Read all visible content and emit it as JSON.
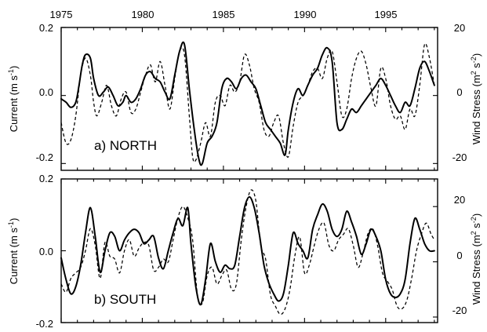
{
  "chart_data": [
    {
      "type": "line",
      "panel_label": "a) NORTH",
      "x_tick_labels": [
        "1975",
        "1980",
        "1985",
        "1990",
        "1995"
      ],
      "xlim": [
        1975,
        1998.2
      ],
      "left_axis": {
        "label_main": "Current (m s",
        "label_exp": "-1",
        "label_close": ")",
        "ylim": [
          -0.22,
          0.2
        ],
        "ticks": [
          0.2,
          0.0,
          -0.2
        ],
        "tick_labels": [
          "0.2",
          "0.0",
          "-0.2"
        ]
      },
      "right_axis": {
        "label_main": "Wind Stress (m",
        "label_exp1": "2",
        "label_mid": " s",
        "label_exp2": "-2",
        "label_close": ")",
        "ylim": [
          -22,
          20
        ],
        "ticks": [
          20,
          0,
          -20
        ],
        "tick_labels": [
          "20",
          "0",
          "-20"
        ]
      },
      "series": [
        {
          "style": "solid",
          "axis": "left",
          "x": [
            1975.0,
            1975.3,
            1975.6,
            1975.9,
            1976.1,
            1976.3,
            1976.5,
            1976.8,
            1977.0,
            1977.3,
            1977.6,
            1977.9,
            1978.2,
            1978.5,
            1978.8,
            1979.0,
            1979.3,
            1979.6,
            1979.9,
            1980.2,
            1980.5,
            1980.8,
            1981.1,
            1981.4,
            1981.7,
            1982.0,
            1982.3,
            1982.6,
            1982.9,
            1983.2,
            1983.5,
            1983.7,
            1984.0,
            1984.3,
            1984.6,
            1984.9,
            1985.2,
            1985.5,
            1985.8,
            1986.1,
            1986.4,
            1986.7,
            1987.0,
            1987.3,
            1987.6,
            1987.9,
            1988.2,
            1988.5,
            1988.8,
            1989.0,
            1989.3,
            1989.6,
            1989.9,
            1990.2,
            1990.5,
            1990.8,
            1991.1,
            1991.4,
            1991.7,
            1992.0,
            1992.3,
            1992.6,
            1992.9,
            1993.2,
            1993.5,
            1993.8,
            1994.1,
            1994.4,
            1994.7,
            1995.0,
            1995.3,
            1995.6,
            1995.9,
            1996.2,
            1996.5,
            1996.8,
            1997.1,
            1997.4,
            1997.7,
            1998.0
          ],
          "y": [
            -0.01,
            -0.02,
            -0.035,
            -0.02,
            0.03,
            0.09,
            0.12,
            0.11,
            0.05,
            0.0,
            0.01,
            0.025,
            0.0,
            -0.03,
            -0.02,
            0.0,
            -0.02,
            -0.01,
            0.02,
            0.06,
            0.07,
            0.05,
            0.04,
            0.01,
            -0.01,
            0.06,
            0.13,
            0.15,
            0.02,
            -0.1,
            -0.19,
            -0.2,
            -0.14,
            -0.12,
            -0.08,
            0.02,
            0.05,
            0.04,
            0.02,
            0.05,
            0.06,
            0.04,
            0.02,
            -0.03,
            -0.08,
            -0.1,
            -0.12,
            -0.14,
            -0.175,
            -0.1,
            -0.02,
            0.02,
            0.0,
            0.03,
            0.06,
            0.08,
            0.12,
            0.14,
            0.1,
            -0.08,
            -0.1,
            -0.07,
            -0.04,
            -0.05,
            -0.03,
            -0.01,
            0.01,
            0.03,
            0.05,
            0.03,
            0.0,
            -0.03,
            -0.05,
            -0.02,
            -0.03,
            0.02,
            0.08,
            0.1,
            0.07,
            0.03
          ]
        },
        {
          "style": "dashed",
          "axis": "right",
          "x": [
            1975.0,
            1975.3,
            1975.6,
            1975.9,
            1976.2,
            1976.5,
            1976.8,
            1977.0,
            1977.2,
            1977.5,
            1977.8,
            1978.1,
            1978.4,
            1978.7,
            1979.0,
            1979.3,
            1979.6,
            1979.9,
            1980.2,
            1980.5,
            1980.8,
            1981.1,
            1981.4,
            1981.7,
            1982.0,
            1982.3,
            1982.6,
            1982.9,
            1983.1,
            1983.3,
            1983.6,
            1983.9,
            1984.2,
            1984.5,
            1984.8,
            1985.1,
            1985.4,
            1985.7,
            1986.0,
            1986.3,
            1986.6,
            1986.9,
            1987.2,
            1987.5,
            1987.8,
            1988.1,
            1988.4,
            1988.7,
            1989.0,
            1989.3,
            1989.6,
            1989.9,
            1990.2,
            1990.5,
            1990.8,
            1991.1,
            1991.4,
            1991.7,
            1992.0,
            1992.3,
            1992.6,
            1992.9,
            1993.2,
            1993.5,
            1993.8,
            1994.1,
            1994.4,
            1994.7,
            1995.0,
            1995.3,
            1995.6,
            1995.9,
            1996.2,
            1996.5,
            1996.8,
            1997.1,
            1997.4,
            1997.7,
            1998.0
          ],
          "y": [
            -8,
            -14,
            -13,
            -6,
            6,
            11,
            6,
            -2,
            -6,
            -2,
            3,
            -3,
            -6,
            -1,
            1,
            -5,
            -4,
            1,
            6,
            9,
            4,
            10,
            3,
            -4,
            5,
            13,
            12,
            -6,
            -18,
            -19,
            -14,
            -8,
            -12,
            -2,
            0,
            -3,
            3,
            1,
            4,
            12,
            9,
            2,
            -2,
            -10,
            -12,
            -8,
            -6,
            -14,
            -18,
            -9,
            -2,
            0,
            3,
            7,
            8,
            5,
            11,
            13,
            4,
            -6,
            -4,
            5,
            11,
            13,
            9,
            2,
            -3,
            8,
            5,
            -3,
            -7,
            -6,
            -10,
            -4,
            -6,
            3,
            15,
            11,
            3
          ]
        }
      ]
    },
    {
      "type": "line",
      "panel_label": "b) SOUTH",
      "x_tick_labels": [
        "1975",
        "1980",
        "1985",
        "1990",
        "1995"
      ],
      "xlim": [
        1975,
        1998.2
      ],
      "left_axis": {
        "label_main": "Current (m s",
        "label_exp": "-1",
        "label_close": ")",
        "ylim": [
          -0.2,
          0.2
        ],
        "ticks": [
          0.2,
          0.0,
          -0.2
        ],
        "tick_labels": [
          "0.2",
          "0.0",
          "-0.2"
        ]
      },
      "right_axis": {
        "label_main": "Wind Stress (m",
        "label_exp1": "2",
        "label_mid": " s",
        "label_exp2": "-2",
        "label_close": ")",
        "ylim": [
          -22,
          30
        ],
        "ticks": [
          20,
          0,
          -20
        ],
        "tick_labels": [
          "20",
          "0",
          "-20"
        ]
      },
      "series": [
        {
          "style": "solid",
          "axis": "left",
          "x": [
            1975.0,
            1975.3,
            1975.6,
            1975.9,
            1976.2,
            1976.5,
            1976.8,
            1977.1,
            1977.4,
            1977.7,
            1978.0,
            1978.3,
            1978.6,
            1978.9,
            1979.2,
            1979.5,
            1979.8,
            1980.1,
            1980.4,
            1980.7,
            1981.0,
            1981.3,
            1981.6,
            1981.9,
            1982.2,
            1982.5,
            1982.8,
            1983.0,
            1983.3,
            1983.6,
            1983.9,
            1984.2,
            1984.5,
            1984.8,
            1985.1,
            1985.4,
            1985.7,
            1986.0,
            1986.3,
            1986.6,
            1986.9,
            1987.2,
            1987.5,
            1987.8,
            1988.1,
            1988.4,
            1988.7,
            1989.0,
            1989.3,
            1989.6,
            1989.9,
            1990.2,
            1990.5,
            1990.8,
            1991.1,
            1991.4,
            1991.7,
            1992.0,
            1992.3,
            1992.6,
            1992.9,
            1993.2,
            1993.5,
            1993.8,
            1994.1,
            1994.4,
            1994.7,
            1995.0,
            1995.3,
            1995.6,
            1995.9,
            1996.2,
            1996.5,
            1996.8,
            1997.1,
            1997.4,
            1997.7,
            1998.0
          ],
          "y": [
            -0.02,
            -0.08,
            -0.12,
            -0.1,
            -0.04,
            0.05,
            0.12,
            0.04,
            -0.06,
            0.0,
            0.05,
            0.04,
            0.0,
            0.03,
            0.05,
            0.06,
            0.05,
            0.02,
            0.03,
            0.04,
            -0.02,
            -0.05,
            0.0,
            0.05,
            0.09,
            0.07,
            0.12,
            0.02,
            -0.1,
            -0.15,
            -0.08,
            0.02,
            -0.03,
            -0.06,
            -0.04,
            -0.05,
            -0.04,
            0.04,
            0.12,
            0.15,
            0.12,
            0.05,
            -0.04,
            -0.09,
            -0.12,
            -0.14,
            -0.12,
            -0.04,
            0.05,
            0.02,
            0.0,
            -0.02,
            0.06,
            0.1,
            0.13,
            0.11,
            0.06,
            0.04,
            0.06,
            0.11,
            0.08,
            0.04,
            -0.01,
            0.02,
            0.06,
            0.04,
            0.0,
            -0.08,
            -0.12,
            -0.13,
            -0.12,
            -0.08,
            0.02,
            0.09,
            0.06,
            0.02,
            0.0,
            0.0
          ]
        },
        {
          "style": "dashed",
          "axis": "right",
          "x": [
            1975.0,
            1975.3,
            1975.6,
            1975.9,
            1976.2,
            1976.5,
            1976.8,
            1977.1,
            1977.4,
            1977.7,
            1978.0,
            1978.3,
            1978.6,
            1978.9,
            1979.2,
            1979.5,
            1979.8,
            1980.1,
            1980.4,
            1980.7,
            1981.0,
            1981.3,
            1981.6,
            1981.9,
            1982.2,
            1982.5,
            1982.8,
            1983.1,
            1983.4,
            1983.7,
            1984.0,
            1984.3,
            1984.6,
            1984.9,
            1985.2,
            1985.5,
            1985.8,
            1986.1,
            1986.4,
            1986.7,
            1987.0,
            1987.3,
            1987.6,
            1987.9,
            1988.2,
            1988.5,
            1988.8,
            1989.1,
            1989.4,
            1989.7,
            1990.0,
            1990.3,
            1990.6,
            1990.9,
            1991.2,
            1991.5,
            1991.8,
            1992.1,
            1992.4,
            1992.7,
            1993.0,
            1993.3,
            1993.6,
            1993.9,
            1994.2,
            1994.5,
            1994.8,
            1995.1,
            1995.4,
            1995.7,
            1996.0,
            1996.3,
            1996.6,
            1996.9,
            1997.2,
            1997.5,
            1997.8,
            1998.0
          ],
          "y": [
            -8,
            -11,
            -6,
            -4,
            -2,
            4,
            12,
            6,
            -6,
            7,
            2,
            1,
            -4,
            4,
            8,
            2,
            5,
            7,
            6,
            -3,
            -2,
            1,
            0,
            8,
            16,
            20,
            16,
            8,
            -12,
            -15,
            -5,
            -2,
            -8,
            -5,
            -3,
            -10,
            -8,
            8,
            20,
            26,
            22,
            6,
            1,
            -12,
            -16,
            -19,
            -17,
            -10,
            2,
            9,
            -4,
            -1,
            6,
            12,
            14,
            6,
            4,
            8,
            10,
            12,
            6,
            -2,
            3,
            10,
            12,
            6,
            -4,
            -7,
            -10,
            -16,
            -17,
            -14,
            -6,
            4,
            10,
            14,
            10,
            8
          ]
        }
      ]
    }
  ]
}
